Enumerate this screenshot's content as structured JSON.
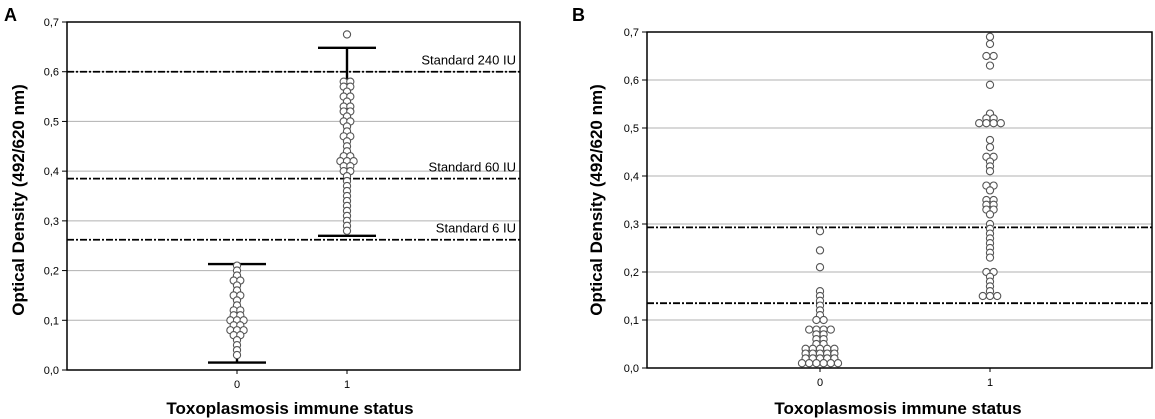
{
  "figure": {
    "panels": [
      {
        "panel_label": "A",
        "xlabel": "Toxoplasmosis immune status",
        "ylabel": "Optical Density (492/620 nm)",
        "xticks": [
          "0",
          "1"
        ],
        "yticks": [
          "0,0",
          "0,1",
          "0,2",
          "0,3",
          "0,4",
          "0,5",
          "0,6",
          "0,7"
        ]
      },
      {
        "panel_label": "B",
        "xlabel": "Toxoplasmosis immune status",
        "ylabel": "Optical Density (492/620 nm)",
        "xticks": [
          "0",
          "1"
        ],
        "yticks": [
          "0,0",
          "0,1",
          "0,2",
          "0,3",
          "0,4",
          "0,5",
          "0,6",
          "0,7"
        ]
      }
    ]
  },
  "chart_data": [
    {
      "type": "scatter",
      "panel": "A",
      "title": "",
      "xlabel": "Toxoplasmosis immune status",
      "ylabel": "Optical Density (492/620 nm)",
      "ylim": [
        0,
        0.7
      ],
      "grid": true,
      "colors": {
        "points": "#ffffff",
        "point_outline": "#555555",
        "grid": "#b0b0b0",
        "lines": "#000000"
      },
      "reference_lines": [
        {
          "label": "Standard 240 IU",
          "y": 0.6
        },
        {
          "label": "Standard 60 IU",
          "y": 0.385
        },
        {
          "label": "Standard 6 IU",
          "y": 0.262
        }
      ],
      "error_bars": [
        {
          "x": 0,
          "low": 0.015,
          "high": 0.213
        },
        {
          "x": 1,
          "low": 0.27,
          "high": 0.648
        }
      ],
      "series": [
        {
          "x": 0,
          "values": [
            0.21,
            0.2,
            0.19,
            0.18,
            0.18,
            0.17,
            0.16,
            0.15,
            0.15,
            0.14,
            0.13,
            0.12,
            0.12,
            0.11,
            0.11,
            0.1,
            0.1,
            0.1,
            0.09,
            0.09,
            0.08,
            0.08,
            0.08,
            0.07,
            0.07,
            0.06,
            0.05,
            0.04,
            0.03
          ]
        },
        {
          "x": 1,
          "values": [
            0.675,
            0.58,
            0.58,
            0.57,
            0.57,
            0.56,
            0.55,
            0.55,
            0.54,
            0.53,
            0.53,
            0.52,
            0.52,
            0.51,
            0.5,
            0.5,
            0.49,
            0.48,
            0.47,
            0.47,
            0.46,
            0.45,
            0.44,
            0.43,
            0.43,
            0.42,
            0.42,
            0.42,
            0.41,
            0.41,
            0.4,
            0.4,
            0.39,
            0.38,
            0.37,
            0.36,
            0.35,
            0.34,
            0.33,
            0.32,
            0.31,
            0.3,
            0.29,
            0.28
          ]
        }
      ]
    },
    {
      "type": "scatter",
      "panel": "B",
      "title": "",
      "xlabel": "Toxoplasmosis immune status",
      "ylabel": "Optical Density (492/620 nm)",
      "ylim": [
        0,
        0.7
      ],
      "grid": true,
      "colors": {
        "points": "#ffffff",
        "point_outline": "#555555",
        "grid": "#b0b0b0",
        "lines": "#000000"
      },
      "reference_lines": [
        {
          "label": "",
          "y": 0.293
        },
        {
          "label": "",
          "y": 0.135
        }
      ],
      "series": [
        {
          "x": 0,
          "values": [
            0.285,
            0.245,
            0.21,
            0.16,
            0.15,
            0.14,
            0.13,
            0.12,
            0.11,
            0.1,
            0.1,
            0.08,
            0.08,
            0.08,
            0.08,
            0.07,
            0.07,
            0.06,
            0.06,
            0.05,
            0.05,
            0.04,
            0.04,
            0.04,
            0.04,
            0.04,
            0.03,
            0.03,
            0.03,
            0.03,
            0.03,
            0.02,
            0.02,
            0.02,
            0.02,
            0.02,
            0.01,
            0.01,
            0.01,
            0.01,
            0.01,
            0.01
          ]
        },
        {
          "x": 1,
          "values": [
            0.69,
            0.675,
            0.65,
            0.65,
            0.63,
            0.59,
            0.53,
            0.52,
            0.515,
            0.51,
            0.51,
            0.51,
            0.51,
            0.475,
            0.46,
            0.44,
            0.44,
            0.43,
            0.42,
            0.41,
            0.38,
            0.38,
            0.37,
            0.35,
            0.35,
            0.34,
            0.34,
            0.33,
            0.33,
            0.32,
            0.3,
            0.29,
            0.28,
            0.27,
            0.26,
            0.25,
            0.24,
            0.23,
            0.2,
            0.2,
            0.19,
            0.18,
            0.17,
            0.16,
            0.15,
            0.15,
            0.15
          ]
        }
      ]
    }
  ]
}
